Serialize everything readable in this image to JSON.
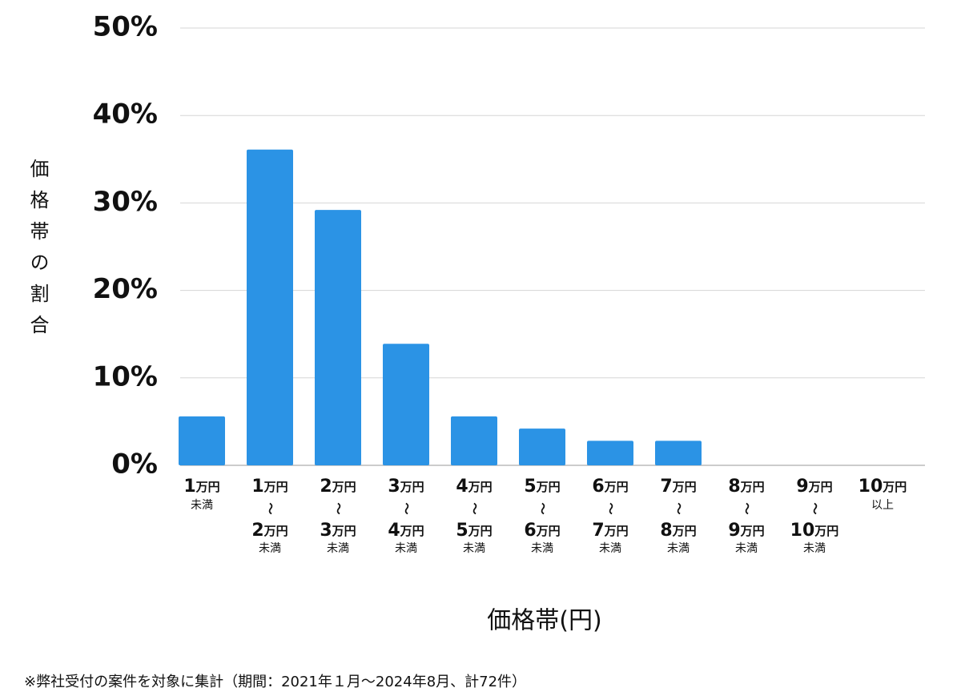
{
  "chart_data": {
    "type": "bar",
    "y_label": "価格帯の割合",
    "x_label": "価格帯(円)",
    "footnote": "※弊社受付の案件を対象に集計（期間：2021年１月〜2024年8月、計72件）",
    "categories": [
      [
        "1万円",
        "未満"
      ],
      [
        "1万円",
        "〜",
        "2万円",
        "未満"
      ],
      [
        "2万円",
        "〜",
        "3万円",
        "未満"
      ],
      [
        "3万円",
        "〜",
        "4万円",
        "未満"
      ],
      [
        "4万円",
        "〜",
        "5万円",
        "未満"
      ],
      [
        "5万円",
        "〜",
        "6万円",
        "未満"
      ],
      [
        "6万円",
        "〜",
        "7万円",
        "未満"
      ],
      [
        "7万円",
        "〜",
        "8万円",
        "未満"
      ],
      [
        "8万円",
        "〜",
        "9万円",
        "未満"
      ],
      [
        "9万円",
        "〜",
        "10万円",
        "未満"
      ],
      [
        "10万円",
        "以上"
      ]
    ],
    "values": [
      5.6,
      36.1,
      29.2,
      13.9,
      5.6,
      4.2,
      2.8,
      2.8,
      0,
      0,
      0
    ],
    "color": "#2b93e5",
    "ylim": [
      0,
      50
    ],
    "yticks": [
      {
        "value": 0,
        "label": "0%"
      },
      {
        "value": 10,
        "label": "10%"
      },
      {
        "value": 20,
        "label": "20%"
      },
      {
        "value": 30,
        "label": "30%"
      },
      {
        "value": 40,
        "label": "40%"
      },
      {
        "value": 50,
        "label": "50%"
      }
    ],
    "grid": true
  }
}
